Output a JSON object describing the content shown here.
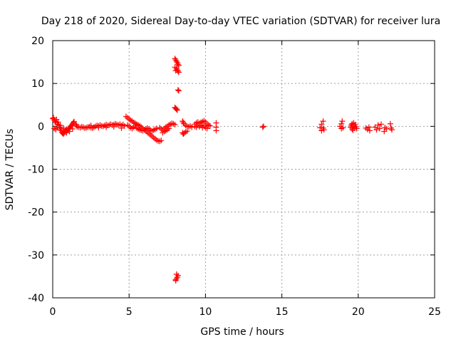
{
  "chart_data": {
    "type": "scatter",
    "title": "Day 218 of 2020, Sidereal Day-to-day VTEC variation (SDTVAR) for receiver lura",
    "xlabel": "GPS time / hours",
    "ylabel": "SDTVAR / TECUs",
    "xlim": [
      0,
      25
    ],
    "ylim": [
      -40,
      20
    ],
    "xticks": [
      0,
      5,
      10,
      15,
      20,
      25
    ],
    "yticks": [
      -40,
      -30,
      -20,
      -10,
      0,
      10,
      20
    ],
    "grid": true,
    "marker": "+",
    "color": "#ff0000",
    "series": [
      {
        "name": "SDTVAR",
        "points": [
          [
            0.0,
            1.8
          ],
          [
            0.05,
            2.0
          ],
          [
            0.1,
            1.5
          ],
          [
            0.15,
            1.2
          ],
          [
            0.2,
            0.9
          ],
          [
            0.25,
            1.6
          ],
          [
            0.3,
            0.5
          ],
          [
            0.35,
            1.0
          ],
          [
            0.4,
            0.3
          ],
          [
            0.45,
            -0.2
          ],
          [
            0.5,
            -0.6
          ],
          [
            0.55,
            -1.0
          ],
          [
            0.6,
            -1.4
          ],
          [
            0.65,
            -1.6
          ],
          [
            0.7,
            -1.8
          ],
          [
            0.75,
            -1.5
          ],
          [
            0.8,
            -1.2
          ],
          [
            0.85,
            -0.9
          ],
          [
            0.9,
            -0.7
          ],
          [
            0.95,
            -1.0
          ],
          [
            1.0,
            -0.8
          ],
          [
            1.05,
            -0.5
          ],
          [
            1.1,
            -0.4
          ],
          [
            1.15,
            -0.2
          ],
          [
            1.2,
            0.1
          ],
          [
            1.25,
            0.3
          ],
          [
            1.3,
            0.6
          ],
          [
            1.35,
            0.9
          ],
          [
            1.4,
            1.1
          ],
          [
            1.5,
            0.5
          ],
          [
            1.55,
            0.2
          ],
          [
            1.6,
            -0.1
          ],
          [
            0.1,
            -0.5
          ],
          [
            0.2,
            -0.8
          ],
          [
            0.3,
            -0.3
          ],
          [
            0.5,
            0.2
          ],
          [
            0.7,
            -0.4
          ],
          [
            0.9,
            -1.5
          ],
          [
            1.1,
            -1.2
          ],
          [
            1.3,
            -0.6
          ],
          [
            1.7,
            -0.2
          ],
          [
            1.8,
            -0.3
          ],
          [
            1.9,
            -0.1
          ],
          [
            2.0,
            -0.2
          ],
          [
            2.1,
            -0.4
          ],
          [
            2.2,
            -0.3
          ],
          [
            2.3,
            -0.2
          ],
          [
            2.4,
            -0.1
          ],
          [
            2.5,
            -0.3
          ],
          [
            2.6,
            -0.4
          ],
          [
            2.7,
            -0.2
          ],
          [
            2.8,
            0.0
          ],
          [
            2.9,
            0.2
          ],
          [
            3.0,
            0.1
          ],
          [
            3.1,
            0.3
          ],
          [
            3.2,
            0.1
          ],
          [
            3.3,
            0.0
          ],
          [
            3.4,
            0.2
          ],
          [
            3.5,
            0.4
          ],
          [
            3.6,
            0.2
          ],
          [
            3.7,
            0.3
          ],
          [
            3.8,
            0.5
          ],
          [
            3.9,
            0.3
          ],
          [
            4.0,
            0.4
          ],
          [
            4.1,
            0.6
          ],
          [
            4.2,
            0.4
          ],
          [
            4.3,
            0.3
          ],
          [
            4.4,
            0.5
          ],
          [
            4.5,
            0.2
          ],
          [
            4.6,
            0.4
          ],
          [
            4.7,
            0.1
          ],
          [
            2.5,
            0.2
          ],
          [
            3.0,
            -0.3
          ],
          [
            3.5,
            -0.2
          ],
          [
            4.0,
            -0.1
          ],
          [
            4.5,
            -0.4
          ],
          [
            4.8,
            2.3
          ],
          [
            4.9,
            2.0
          ],
          [
            5.0,
            1.7
          ],
          [
            5.1,
            1.4
          ],
          [
            5.2,
            1.2
          ],
          [
            5.3,
            0.9
          ],
          [
            5.4,
            0.7
          ],
          [
            5.5,
            0.5
          ],
          [
            5.6,
            0.3
          ],
          [
            5.7,
            0.1
          ],
          [
            5.8,
            -0.2
          ],
          [
            5.9,
            -0.5
          ],
          [
            6.0,
            -0.8
          ],
          [
            6.1,
            -1.1
          ],
          [
            6.2,
            -1.4
          ],
          [
            6.3,
            -1.7
          ],
          [
            6.4,
            -2.0
          ],
          [
            6.5,
            -2.3
          ],
          [
            6.6,
            -2.6
          ],
          [
            6.7,
            -2.9
          ],
          [
            6.8,
            -3.2
          ],
          [
            6.9,
            -3.4
          ],
          [
            7.0,
            -3.5
          ],
          [
            7.1,
            -3.3
          ],
          [
            4.9,
            0.3
          ],
          [
            5.0,
            0.0
          ],
          [
            5.1,
            -0.3
          ],
          [
            5.2,
            -0.5
          ],
          [
            5.3,
            -0.2
          ],
          [
            5.4,
            0.1
          ],
          [
            5.5,
            -0.4
          ],
          [
            5.6,
            -0.6
          ],
          [
            5.7,
            -0.8
          ],
          [
            5.8,
            -0.9
          ],
          [
            5.9,
            -1.0
          ],
          [
            6.0,
            -0.8
          ],
          [
            6.1,
            -0.6
          ],
          [
            6.2,
            -0.4
          ],
          [
            6.3,
            -0.6
          ],
          [
            6.4,
            -0.9
          ],
          [
            6.5,
            -1.1
          ],
          [
            6.6,
            -0.9
          ],
          [
            6.7,
            -0.7
          ],
          [
            6.8,
            -0.5
          ],
          [
            7.0,
            -0.3
          ],
          [
            7.1,
            -0.6
          ],
          [
            7.2,
            -0.9
          ],
          [
            7.3,
            -0.5
          ],
          [
            7.4,
            -0.2
          ],
          [
            7.5,
            0.0
          ],
          [
            7.6,
            0.3
          ],
          [
            7.7,
            0.5
          ],
          [
            7.8,
            0.7
          ],
          [
            7.9,
            0.6
          ],
          [
            8.0,
            0.4
          ],
          [
            7.2,
            -1.5
          ],
          [
            7.3,
            -1.2
          ],
          [
            7.4,
            -1.0
          ],
          [
            7.5,
            -0.8
          ],
          [
            7.6,
            -0.5
          ],
          [
            8.0,
            15.8
          ],
          [
            8.05,
            15.5
          ],
          [
            8.1,
            15.2
          ],
          [
            8.15,
            14.9
          ],
          [
            8.2,
            14.5
          ],
          [
            8.25,
            14.2
          ],
          [
            8.1,
            13.5
          ],
          [
            8.15,
            13.2
          ],
          [
            8.2,
            12.9
          ],
          [
            8.25,
            12.6
          ],
          [
            8.0,
            13.8
          ],
          [
            8.05,
            13.0
          ],
          [
            8.2,
            8.5
          ],
          [
            8.25,
            8.3
          ],
          [
            8.0,
            4.4
          ],
          [
            8.05,
            4.2
          ],
          [
            8.1,
            4.0
          ],
          [
            8.15,
            3.8
          ],
          [
            8.05,
            -35.8
          ],
          [
            8.1,
            -35.5
          ],
          [
            8.15,
            -35.2
          ],
          [
            8.2,
            -34.8
          ],
          [
            8.1,
            -34.5
          ],
          [
            8.05,
            -36.0
          ],
          [
            8.5,
            1.2
          ],
          [
            8.55,
            0.9
          ],
          [
            8.6,
            0.6
          ],
          [
            8.5,
            -1.5
          ],
          [
            8.55,
            -1.8
          ],
          [
            8.6,
            -1.6
          ],
          [
            8.7,
            -1.3
          ],
          [
            8.8,
            -1.1
          ],
          [
            8.7,
            0.2
          ],
          [
            8.8,
            0.0
          ],
          [
            8.9,
            -0.1
          ],
          [
            9.0,
            0.1
          ],
          [
            9.1,
            -0.2
          ],
          [
            9.3,
            0.5
          ],
          [
            9.4,
            0.8
          ],
          [
            9.5,
            1.0
          ],
          [
            9.6,
            0.7
          ],
          [
            9.7,
            0.9
          ],
          [
            9.8,
            1.1
          ],
          [
            9.9,
            1.3
          ],
          [
            10.0,
            1.0
          ],
          [
            9.3,
            0.0
          ],
          [
            9.4,
            -0.2
          ],
          [
            9.5,
            0.2
          ],
          [
            9.6,
            -0.1
          ],
          [
            9.7,
            0.3
          ],
          [
            9.8,
            -0.3
          ],
          [
            9.9,
            0.1
          ],
          [
            10.0,
            -0.2
          ],
          [
            10.1,
            0.6
          ],
          [
            10.2,
            0.3
          ],
          [
            10.3,
            0.1
          ],
          [
            10.1,
            -0.5
          ],
          [
            10.7,
            0.8
          ],
          [
            10.7,
            -0.2
          ],
          [
            10.7,
            -1.0
          ],
          [
            13.8,
            0.0
          ],
          [
            13.75,
            -0.2
          ],
          [
            17.5,
            -0.3
          ],
          [
            17.6,
            0.5
          ],
          [
            17.7,
            1.2
          ],
          [
            17.75,
            -0.8
          ],
          [
            17.6,
            -1.0
          ],
          [
            17.7,
            -0.4
          ],
          [
            18.8,
            0.0
          ],
          [
            18.9,
            0.6
          ],
          [
            18.95,
            1.2
          ],
          [
            18.9,
            -0.5
          ],
          [
            19.0,
            -0.3
          ],
          [
            19.5,
            -0.2
          ],
          [
            19.55,
            0.3
          ],
          [
            19.6,
            0.6
          ],
          [
            19.6,
            -0.6
          ],
          [
            19.65,
            -0.9
          ],
          [
            19.7,
            0.0
          ],
          [
            19.75,
            -0.4
          ],
          [
            19.8,
            0.4
          ],
          [
            19.85,
            -0.1
          ],
          [
            19.9,
            -0.5
          ],
          [
            19.7,
            0.8
          ],
          [
            19.6,
            -0.2
          ],
          [
            20.5,
            -0.4
          ],
          [
            20.6,
            -0.7
          ],
          [
            20.7,
            -0.2
          ],
          [
            20.75,
            -1.0
          ],
          [
            21.1,
            -0.2
          ],
          [
            21.2,
            -0.8
          ],
          [
            21.3,
            0.3
          ],
          [
            21.4,
            -0.5
          ],
          [
            21.5,
            0.5
          ],
          [
            21.7,
            -1.2
          ],
          [
            21.75,
            -0.3
          ],
          [
            21.85,
            -0.6
          ],
          [
            22.1,
            0.6
          ],
          [
            22.15,
            -0.4
          ],
          [
            22.2,
            -0.8
          ]
        ]
      }
    ]
  }
}
